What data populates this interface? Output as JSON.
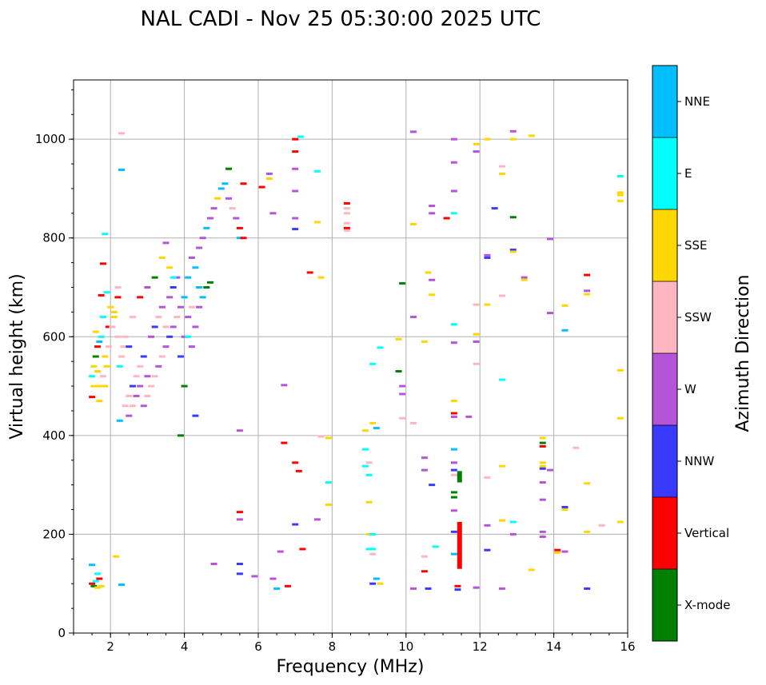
{
  "chart_data": {
    "type": "scatter",
    "title": "NAL CADI - Nov 25 05:30:00 2025 UTC",
    "xlabel": "Frequency (MHz)",
    "ylabel": "Virtual height (km)",
    "xlim": [
      1,
      16
    ],
    "ylim": [
      0,
      1120
    ],
    "xticks": [
      2,
      4,
      6,
      8,
      10,
      12,
      14,
      16
    ],
    "yticks": [
      0,
      200,
      400,
      600,
      800,
      1000
    ],
    "grid": true,
    "colorbar": {
      "label": "Azimuth Direction",
      "categories": [
        {
          "name": "X-mode",
          "color": "#008000"
        },
        {
          "name": "Vertical",
          "color": "#ff0000"
        },
        {
          "name": "NNW",
          "color": "#3a3aff"
        },
        {
          "name": "W",
          "color": "#b455d8"
        },
        {
          "name": "SSW",
          "color": "#ffb6c1"
        },
        {
          "name": "SSE",
          "color": "#ffd700"
        },
        {
          "name": "E",
          "color": "#00ffff"
        },
        {
          "name": "NNE",
          "color": "#00bfff"
        }
      ]
    },
    "points": [
      [
        1.5,
        100,
        "Vertical"
      ],
      [
        1.55,
        95,
        "X-mode"
      ],
      [
        1.6,
        105,
        "E"
      ],
      [
        1.65,
        92,
        "SSE"
      ],
      [
        1.7,
        110,
        "Vertical"
      ],
      [
        1.75,
        95,
        "SSE"
      ],
      [
        1.5,
        138,
        "NNE"
      ],
      [
        1.65,
        120,
        "E"
      ],
      [
        1.5,
        520,
        "E"
      ],
      [
        1.55,
        540,
        "SSE"
      ],
      [
        1.6,
        560,
        "X-mode"
      ],
      [
        1.65,
        580,
        "Vertical"
      ],
      [
        1.7,
        500,
        "SSE"
      ],
      [
        1.75,
        600,
        "E"
      ],
      [
        1.8,
        520,
        "SSW"
      ],
      [
        1.85,
        560,
        "SSE"
      ],
      [
        1.9,
        540,
        "SSE"
      ],
      [
        1.95,
        620,
        "Vertical"
      ],
      [
        1.7,
        470,
        "SSE"
      ],
      [
        1.8,
        640,
        "E"
      ],
      [
        1.6,
        610,
        "SSE"
      ],
      [
        1.9,
        690,
        "E"
      ],
      [
        1.85,
        808,
        "E"
      ],
      [
        1.8,
        748,
        "Vertical"
      ],
      [
        1.75,
        684,
        "Vertical"
      ],
      [
        1.5,
        478,
        "Vertical"
      ],
      [
        2.0,
        660,
        "SSE"
      ],
      [
        1.95,
        580,
        "SSW"
      ],
      [
        1.7,
        590,
        "NNE"
      ],
      [
        1.85,
        500,
        "SSE"
      ],
      [
        1.65,
        530,
        "SSE"
      ],
      [
        1.55,
        500,
        "SSE"
      ],
      [
        2.05,
        620,
        "SSW"
      ],
      [
        2.1,
        640,
        "SSE"
      ],
      [
        2.2,
        600,
        "SSW"
      ],
      [
        2.2,
        700,
        "SSW"
      ],
      [
        2.3,
        560,
        "SSW"
      ],
      [
        2.25,
        540,
        "E"
      ],
      [
        2.3,
        1012,
        "SSW"
      ],
      [
        2.3,
        938,
        "NNE"
      ],
      [
        2.35,
        580,
        "SSW"
      ],
      [
        2.4,
        600,
        "SSW"
      ],
      [
        2.1,
        650,
        "SSE"
      ],
      [
        2.2,
        680,
        "Vertical"
      ],
      [
        2.25,
        430,
        "NNE"
      ],
      [
        2.3,
        98,
        "NNE"
      ],
      [
        2.15,
        155,
        "SSE"
      ],
      [
        2.4,
        460,
        "SSW"
      ],
      [
        2.5,
        440,
        "W"
      ],
      [
        2.5,
        480,
        "SSW"
      ],
      [
        2.6,
        500,
        "NNW"
      ],
      [
        2.6,
        460,
        "SSW"
      ],
      [
        2.7,
        480,
        "W"
      ],
      [
        2.7,
        520,
        "SSW"
      ],
      [
        2.8,
        500,
        "W"
      ],
      [
        2.8,
        540,
        "SSW"
      ],
      [
        2.9,
        460,
        "W"
      ],
      [
        2.9,
        560,
        "NNW"
      ],
      [
        3.0,
        480,
        "SSW"
      ],
      [
        3.0,
        520,
        "W"
      ],
      [
        3.1,
        500,
        "SSW"
      ],
      [
        3.1,
        600,
        "W"
      ],
      [
        3.2,
        520,
        "SSW"
      ],
      [
        3.2,
        620,
        "NNW"
      ],
      [
        3.3,
        540,
        "W"
      ],
      [
        3.3,
        640,
        "SSW"
      ],
      [
        3.4,
        560,
        "SSW"
      ],
      [
        3.4,
        660,
        "W"
      ],
      [
        3.5,
        580,
        "W"
      ],
      [
        3.5,
        620,
        "SSW"
      ],
      [
        3.6,
        600,
        "NNW"
      ],
      [
        3.6,
        680,
        "W"
      ],
      [
        3.7,
        620,
        "W"
      ],
      [
        3.7,
        700,
        "NNW"
      ],
      [
        3.8,
        640,
        "SSW"
      ],
      [
        3.8,
        720,
        "W"
      ],
      [
        3.9,
        660,
        "W"
      ],
      [
        3.9,
        560,
        "NNW"
      ],
      [
        4.0,
        680,
        "NNE"
      ],
      [
        4.0,
        600,
        "W"
      ],
      [
        4.1,
        720,
        "NNE"
      ],
      [
        4.1,
        640,
        "W"
      ],
      [
        4.2,
        760,
        "W"
      ],
      [
        4.2,
        660,
        "SSW"
      ],
      [
        4.3,
        740,
        "NNE"
      ],
      [
        4.3,
        620,
        "W"
      ],
      [
        4.4,
        700,
        "NNE"
      ],
      [
        4.4,
        780,
        "W"
      ],
      [
        4.5,
        680,
        "NNE"
      ],
      [
        4.5,
        800,
        "W"
      ],
      [
        4.6,
        820,
        "NNE"
      ],
      [
        4.6,
        700,
        "X-mode"
      ],
      [
        4.7,
        840,
        "W"
      ],
      [
        4.7,
        710,
        "X-mode"
      ],
      [
        4.8,
        860,
        "W"
      ],
      [
        4.9,
        880,
        "SSE"
      ],
      [
        5.0,
        900,
        "NNE"
      ],
      [
        5.1,
        910,
        "NNE"
      ],
      [
        5.2,
        940,
        "X-mode"
      ],
      [
        5.2,
        880,
        "W"
      ],
      [
        5.3,
        860,
        "SSW"
      ],
      [
        5.4,
        840,
        "W"
      ],
      [
        5.5,
        820,
        "Vertical"
      ],
      [
        5.5,
        800,
        "NNE"
      ],
      [
        5.6,
        910,
        "Vertical"
      ],
      [
        5.6,
        800,
        "Vertical"
      ],
      [
        2.8,
        680,
        "Vertical"
      ],
      [
        3.0,
        700,
        "W"
      ],
      [
        3.2,
        720,
        "X-mode"
      ],
      [
        3.4,
        760,
        "SSE"
      ],
      [
        3.5,
        790,
        "W"
      ],
      [
        3.6,
        740,
        "SSE"
      ],
      [
        3.7,
        720,
        "E"
      ],
      [
        2.6,
        640,
        "SSW"
      ],
      [
        2.5,
        580,
        "NNW"
      ],
      [
        3.9,
        400,
        "X-mode"
      ],
      [
        4.0,
        500,
        "X-mode"
      ],
      [
        4.3,
        440,
        "NNW"
      ],
      [
        4.8,
        140,
        "W"
      ],
      [
        4.4,
        660,
        "W"
      ],
      [
        4.1,
        600,
        "E"
      ],
      [
        4.2,
        580,
        "W"
      ],
      [
        5.5,
        140,
        "NNW"
      ],
      [
        5.5,
        120,
        "NNW"
      ],
      [
        5.5,
        230,
        "W"
      ],
      [
        5.5,
        245,
        "Vertical"
      ],
      [
        5.5,
        410,
        "W"
      ],
      [
        5.9,
        115,
        "W"
      ],
      [
        6.4,
        110,
        "W"
      ],
      [
        6.5,
        90,
        "NNE"
      ],
      [
        6.6,
        165,
        "W"
      ],
      [
        6.8,
        95,
        "Vertical"
      ],
      [
        6.7,
        385,
        "Vertical"
      ],
      [
        6.4,
        850,
        "W"
      ],
      [
        6.3,
        930,
        "W"
      ],
      [
        6.3,
        920,
        "SSE"
      ],
      [
        6.1,
        903,
        "Vertical"
      ],
      [
        6.7,
        502,
        "W"
      ],
      [
        7.0,
        1000,
        "Vertical"
      ],
      [
        7.0,
        975,
        "Vertical"
      ],
      [
        7.0,
        940,
        "W"
      ],
      [
        7.0,
        895,
        "W"
      ],
      [
        7.0,
        840,
        "W"
      ],
      [
        7.0,
        818,
        "NNW"
      ],
      [
        7.15,
        1005,
        "E"
      ],
      [
        7.0,
        345,
        "Vertical"
      ],
      [
        7.1,
        328,
        "Vertical"
      ],
      [
        7.2,
        170,
        "Vertical"
      ],
      [
        7.4,
        730,
        "Vertical"
      ],
      [
        7.6,
        935,
        "E"
      ],
      [
        7.6,
        832,
        "SSE"
      ],
      [
        7.6,
        230,
        "W"
      ],
      [
        7.7,
        720,
        "SSE"
      ],
      [
        7.7,
        398,
        "SSW"
      ],
      [
        7.9,
        395,
        "SSE"
      ],
      [
        7.9,
        305,
        "E"
      ],
      [
        7.9,
        260,
        "SSE"
      ],
      [
        7.0,
        220,
        "NNW"
      ],
      [
        8.4,
        870,
        "Vertical"
      ],
      [
        8.4,
        860,
        "SSW"
      ],
      [
        8.4,
        850,
        "SSW"
      ],
      [
        8.4,
        820,
        "Vertical"
      ],
      [
        8.4,
        815,
        "SSW"
      ],
      [
        8.4,
        830,
        "SSW"
      ],
      [
        8.9,
        410,
        "SSE"
      ],
      [
        8.9,
        372,
        "E"
      ],
      [
        8.9,
        338,
        "E"
      ],
      [
        9.0,
        320,
        "E"
      ],
      [
        9.0,
        265,
        "SSE"
      ],
      [
        9.0,
        200,
        "SSE"
      ],
      [
        9.1,
        200,
        "E"
      ],
      [
        9.0,
        170,
        "E"
      ],
      [
        9.1,
        170,
        "E"
      ],
      [
        9.1,
        160,
        "SSW"
      ],
      [
        9.1,
        100,
        "NNW"
      ],
      [
        9.2,
        110,
        "NNE"
      ],
      [
        9.3,
        100,
        "SSE"
      ],
      [
        9.1,
        425,
        "SSE"
      ],
      [
        9.2,
        415,
        "NNE"
      ],
      [
        9.3,
        578,
        "E"
      ],
      [
        9.1,
        545,
        "E"
      ],
      [
        9.0,
        345,
        "SSW"
      ],
      [
        9.8,
        595,
        "SSE"
      ],
      [
        9.8,
        530,
        "X-mode"
      ],
      [
        9.9,
        708,
        "X-mode"
      ],
      [
        9.9,
        500,
        "W"
      ],
      [
        9.9,
        484,
        "W"
      ],
      [
        9.9,
        435,
        "SSW"
      ],
      [
        10.2,
        640,
        "W"
      ],
      [
        10.2,
        425,
        "SSW"
      ],
      [
        10.2,
        1015,
        "W"
      ],
      [
        10.2,
        828,
        "SSE"
      ],
      [
        10.5,
        590,
        "SSE"
      ],
      [
        10.5,
        355,
        "W"
      ],
      [
        10.5,
        330,
        "W"
      ],
      [
        10.5,
        155,
        "SSW"
      ],
      [
        10.5,
        125,
        "Vertical"
      ],
      [
        10.2,
        90,
        "W"
      ],
      [
        10.6,
        90,
        "NNW"
      ],
      [
        10.7,
        300,
        "NNW"
      ],
      [
        10.8,
        175,
        "E"
      ],
      [
        10.6,
        730,
        "SSE"
      ],
      [
        10.7,
        715,
        "W"
      ],
      [
        10.7,
        685,
        "SSE"
      ],
      [
        10.7,
        865,
        "W"
      ],
      [
        10.7,
        850,
        "W"
      ],
      [
        11.1,
        840,
        "Vertical"
      ],
      [
        11.3,
        1000,
        "W"
      ],
      [
        11.3,
        895,
        "W"
      ],
      [
        11.3,
        953,
        "W"
      ],
      [
        11.3,
        850,
        "E"
      ],
      [
        11.3,
        625,
        "E"
      ],
      [
        11.3,
        588,
        "W"
      ],
      [
        11.3,
        470,
        "SSE"
      ],
      [
        11.3,
        445,
        "Vertical"
      ],
      [
        11.3,
        438,
        "W"
      ],
      [
        11.3,
        372,
        "NNE"
      ],
      [
        11.3,
        345,
        "W"
      ],
      [
        11.3,
        330,
        "NNW"
      ],
      [
        11.3,
        320,
        "SSW"
      ],
      [
        11.3,
        285,
        "X-mode"
      ],
      [
        11.3,
        275,
        "X-mode"
      ],
      [
        11.3,
        248,
        "W"
      ],
      [
        11.3,
        205,
        "NNW"
      ],
      [
        11.3,
        160,
        "NNE"
      ],
      [
        11.4,
        95,
        "Vertical"
      ],
      [
        11.4,
        88,
        "NNW"
      ],
      [
        11.7,
        438,
        "W"
      ],
      [
        11.9,
        590,
        "W"
      ],
      [
        11.9,
        545,
        "SSW"
      ],
      [
        11.9,
        665,
        "SSW"
      ],
      [
        11.9,
        605,
        "SSE"
      ],
      [
        11.9,
        975,
        "W"
      ],
      [
        11.9,
        990,
        "SSE"
      ],
      [
        11.9,
        92,
        "W"
      ],
      [
        12.2,
        1000,
        "SSE"
      ],
      [
        12.2,
        765,
        "W"
      ],
      [
        12.2,
        760,
        "NNW"
      ],
      [
        12.2,
        665,
        "SSE"
      ],
      [
        12.2,
        315,
        "SSW"
      ],
      [
        12.2,
        218,
        "W"
      ],
      [
        12.2,
        168,
        "NNW"
      ],
      [
        12.4,
        860,
        "NNW"
      ],
      [
        12.6,
        945,
        "SSW"
      ],
      [
        12.6,
        930,
        "SSE"
      ],
      [
        12.6,
        683,
        "SSW"
      ],
      [
        12.6,
        513,
        "E"
      ],
      [
        12.6,
        338,
        "SSE"
      ],
      [
        12.6,
        228,
        "SSE"
      ],
      [
        12.6,
        90,
        "W"
      ],
      [
        12.9,
        1016,
        "W"
      ],
      [
        12.9,
        1000,
        "SSE"
      ],
      [
        12.9,
        842,
        "X-mode"
      ],
      [
        12.9,
        776,
        "NNW"
      ],
      [
        12.9,
        772,
        "SSE"
      ],
      [
        12.9,
        225,
        "E"
      ],
      [
        12.9,
        200,
        "W"
      ],
      [
        13.2,
        720,
        "W"
      ],
      [
        13.2,
        715,
        "SSE"
      ],
      [
        13.4,
        1007,
        "SSE"
      ],
      [
        13.4,
        128,
        "SSE"
      ],
      [
        13.7,
        395,
        "SSE"
      ],
      [
        13.7,
        385,
        "X-mode"
      ],
      [
        13.7,
        378,
        "Vertical"
      ],
      [
        13.7,
        345,
        "SSE"
      ],
      [
        13.7,
        338,
        "SSE"
      ],
      [
        13.7,
        333,
        "NNW"
      ],
      [
        13.7,
        305,
        "W"
      ],
      [
        13.7,
        270,
        "W"
      ],
      [
        13.7,
        205,
        "W"
      ],
      [
        13.7,
        195,
        "W"
      ],
      [
        13.9,
        798,
        "W"
      ],
      [
        13.9,
        648,
        "W"
      ],
      [
        13.9,
        330,
        "W"
      ],
      [
        14.1,
        168,
        "Vertical"
      ],
      [
        14.1,
        163,
        "SSE"
      ],
      [
        14.3,
        663,
        "SSE"
      ],
      [
        14.3,
        613,
        "NNE"
      ],
      [
        14.3,
        255,
        "NNW"
      ],
      [
        14.3,
        250,
        "SSE"
      ],
      [
        14.3,
        165,
        "W"
      ],
      [
        14.6,
        375,
        "SSW"
      ],
      [
        14.9,
        725,
        "Vertical"
      ],
      [
        14.9,
        693,
        "W"
      ],
      [
        14.9,
        686,
        "SSE"
      ],
      [
        14.9,
        303,
        "SSE"
      ],
      [
        14.9,
        205,
        "SSE"
      ],
      [
        14.9,
        90,
        "NNW"
      ],
      [
        15.3,
        218,
        "SSW"
      ],
      [
        15.8,
        925,
        "E"
      ],
      [
        15.8,
        892,
        "SSE"
      ],
      [
        15.8,
        887,
        "SSE"
      ],
      [
        15.8,
        875,
        "SSE"
      ],
      [
        15.8,
        532,
        "SSE"
      ],
      [
        15.8,
        435,
        "SSE"
      ],
      [
        15.8,
        225,
        "SSE"
      ]
    ],
    "bars": [
      {
        "freq": 11.45,
        "h_from": 130,
        "h_to": 225,
        "category": "Vertical"
      },
      {
        "freq": 11.45,
        "h_from": 305,
        "h_to": 328,
        "category": "X-mode"
      }
    ]
  }
}
